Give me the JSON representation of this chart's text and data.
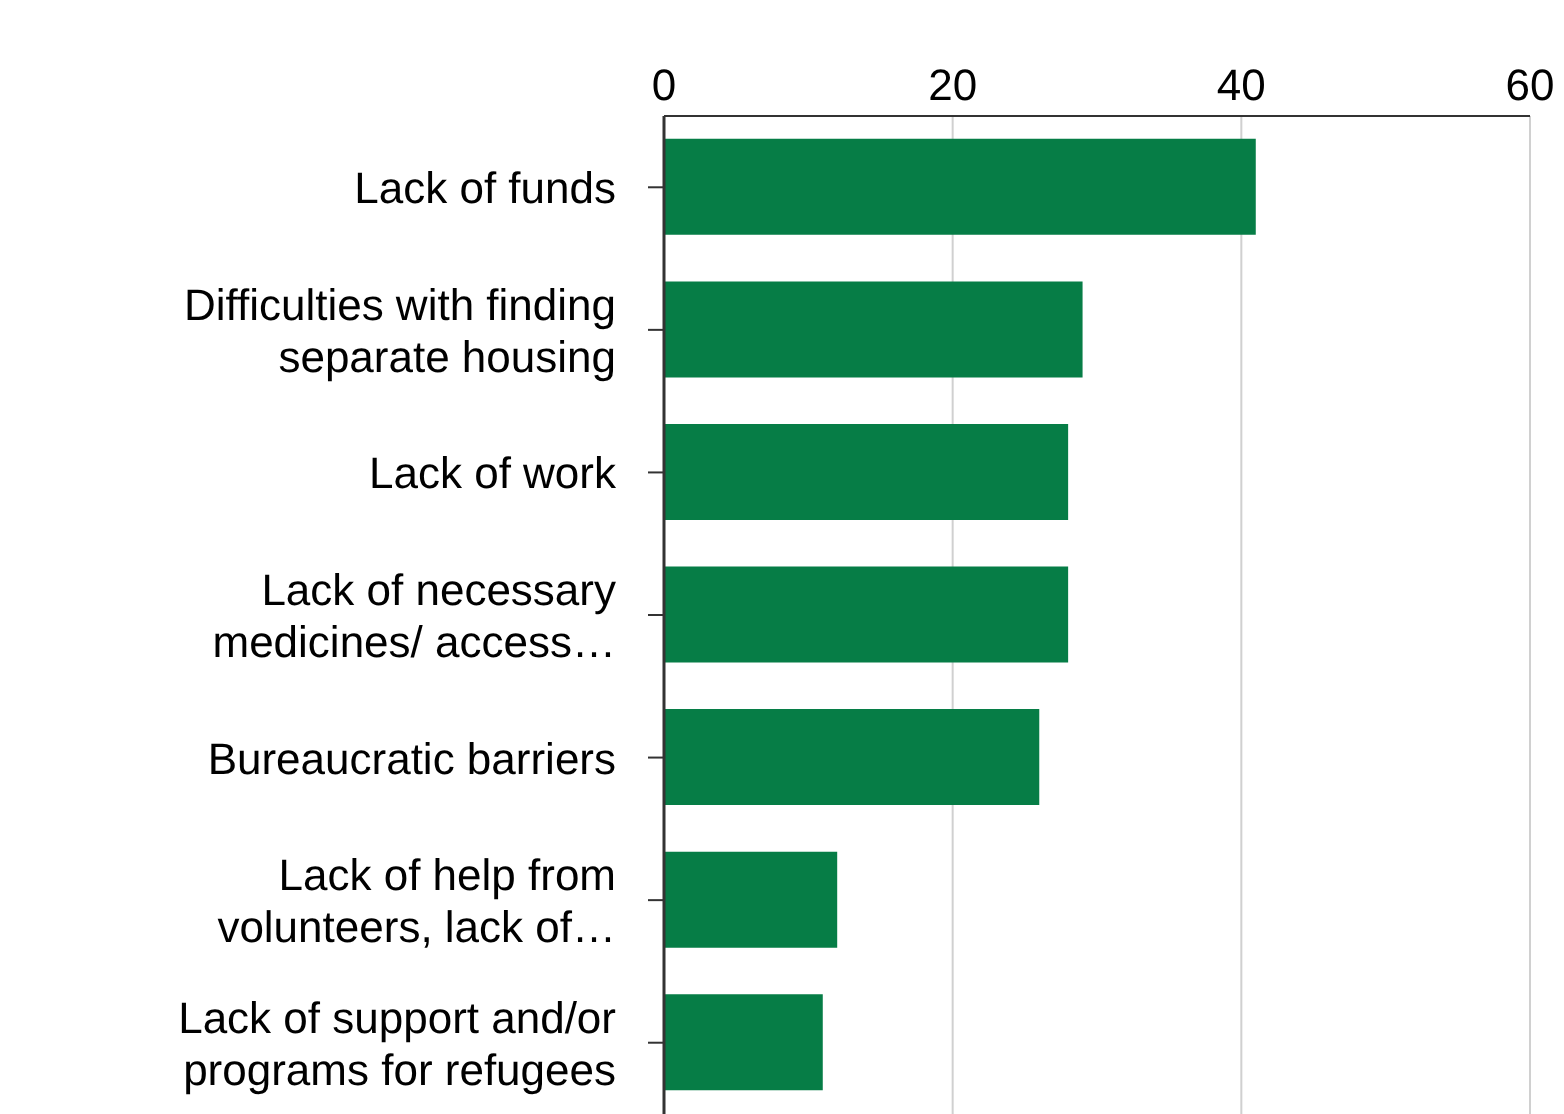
{
  "chart_data": {
    "type": "bar",
    "orientation": "horizontal",
    "categories": [
      "Lack of funds",
      "Difficulties with finding separate housing",
      "Lack of work",
      "Lack of necessary medicines/ access…",
      "Bureaucratic barriers",
      "Lack of help from volunteers, lack of…",
      "Lack of support and/or programs for refugees"
    ],
    "values": [
      41,
      29,
      28,
      28,
      26,
      12,
      11
    ],
    "color": "#067d46",
    "xlim": [
      0,
      60
    ],
    "xticks": [
      0,
      20,
      40,
      60
    ],
    "grid": "x",
    "legend": false
  }
}
